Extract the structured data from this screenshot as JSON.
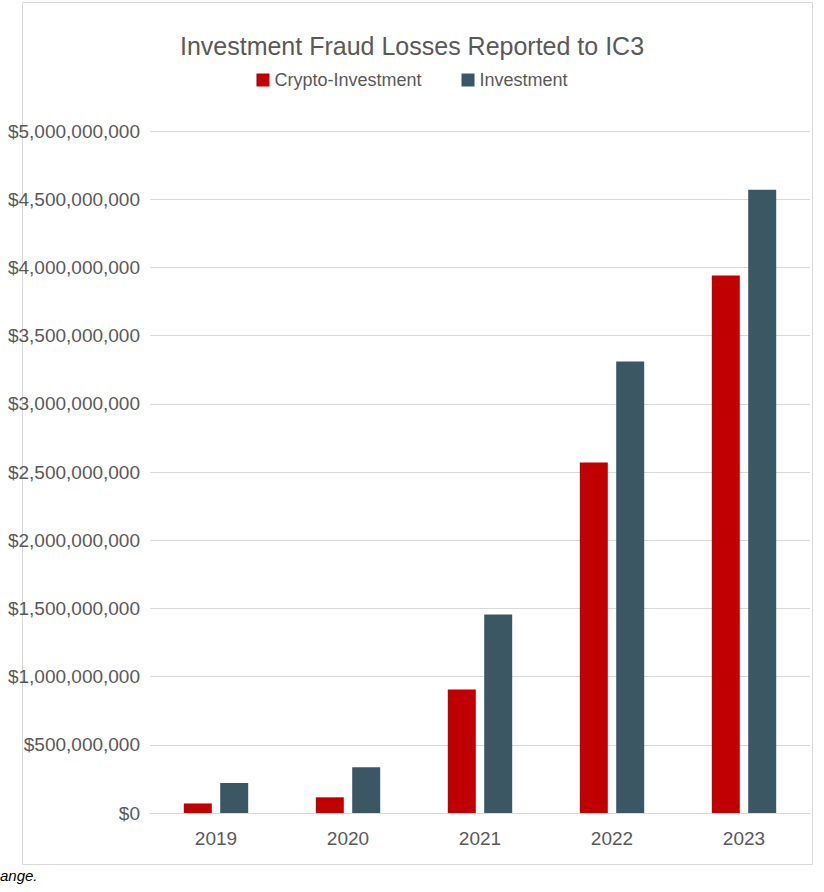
{
  "chart_data": {
    "type": "bar",
    "title": "Investment Fraud Losses Reported to IC3",
    "categories": [
      "2019",
      "2020",
      "2021",
      "2022",
      "2023"
    ],
    "series": [
      {
        "name": "Crypto-Investment",
        "color": "#c00000",
        "values": [
          70000000,
          115000000,
          905000000,
          2570000000,
          3940000000
        ]
      },
      {
        "name": "Investment",
        "color": "#3b5764",
        "values": [
          220000000,
          335000000,
          1455000000,
          3310000000,
          4570000000
        ]
      }
    ],
    "ylim": [
      0,
      5000000000
    ],
    "yticks": [
      {
        "value": 0,
        "label": "$0"
      },
      {
        "value": 500000000,
        "label": "$500,000,000"
      },
      {
        "value": 1000000000,
        "label": "$1,000,000,000"
      },
      {
        "value": 1500000000,
        "label": "$1,500,000,000"
      },
      {
        "value": 2000000000,
        "label": "$2,000,000,000"
      },
      {
        "value": 2500000000,
        "label": "$2,500,000,000"
      },
      {
        "value": 3000000000,
        "label": "$3,000,000,000"
      },
      {
        "value": 3500000000,
        "label": "$3,500,000,000"
      },
      {
        "value": 4000000000,
        "label": "$4,000,000,000"
      },
      {
        "value": 4500000000,
        "label": "$4,500,000,000"
      },
      {
        "value": 5000000000,
        "label": "$5,000,000,000"
      }
    ],
    "grid": true,
    "legend": "top",
    "annotations": [
      "ange."
    ]
  }
}
